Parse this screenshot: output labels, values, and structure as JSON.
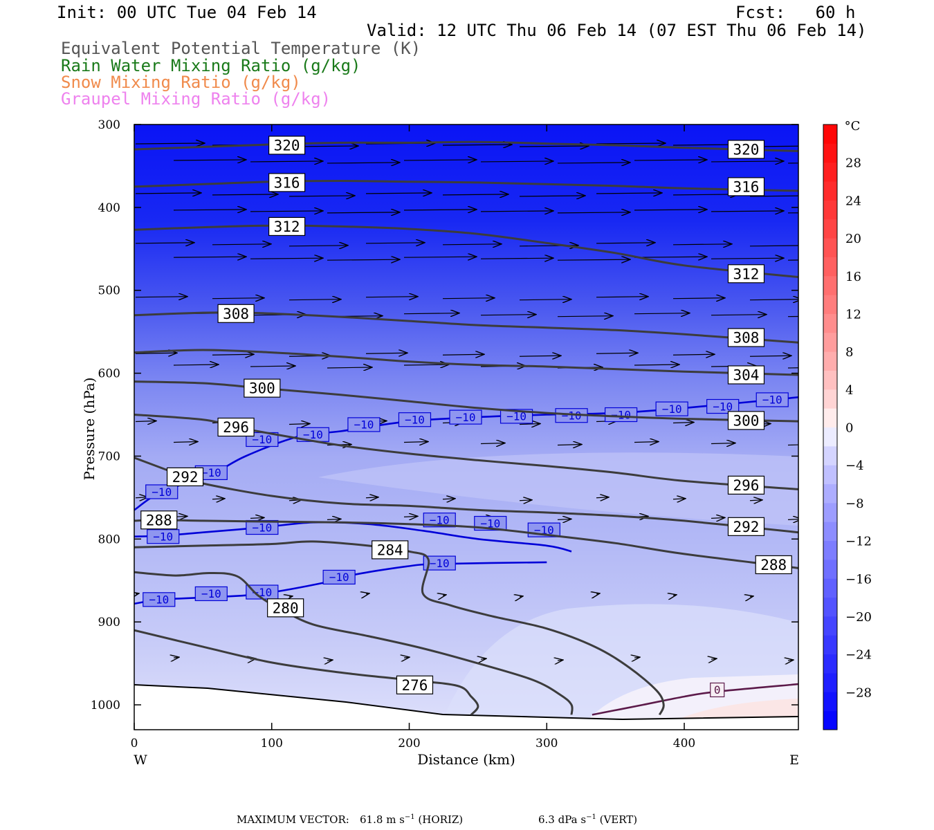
{
  "header": {
    "init": "Init: 00 UTC Tue 04 Feb 14",
    "fcst": "Fcst:   60 h",
    "valid": "Valid: 12 UTC Thu 06 Feb 14 (07 EST Thu 06 Feb 14)",
    "fields": [
      {
        "label": "Equivalent Potential Temperature (K)",
        "color": "#555555"
      },
      {
        "label": "Rain Water Mixing Ratio (g/kg)",
        "color": "#1a7a1a"
      },
      {
        "label": "Snow Mixing Ratio (g/kg)",
        "color": "#f08a4b"
      },
      {
        "label": "Graupel Mixing Ratio (g/kg)",
        "color": "#ee82ee"
      }
    ]
  },
  "chart_data": {
    "type": "cross-section",
    "xlabel": "Distance (km)",
    "ylabel": "Pressure (hPa)",
    "x_ticks": [
      0,
      100,
      200,
      300,
      400
    ],
    "xlim": [
      0,
      483
    ],
    "y_ticks": [
      300,
      400,
      500,
      600,
      700,
      800,
      900,
      1000
    ],
    "ylim": [
      300,
      1030
    ],
    "x_end_labels": {
      "left": "W",
      "right": "E"
    },
    "colorbar": {
      "unit": "°C",
      "tick_values": [
        28,
        24,
        20,
        16,
        12,
        8,
        4,
        0,
        -4,
        -8,
        -12,
        -16,
        -20,
        -24,
        -28
      ],
      "tick_labels": [
        "28",
        "24",
        "20",
        "16",
        "12",
        "8",
        "4",
        "0",
        "−4",
        "−8",
        "−12",
        "−16",
        "−20",
        "−24",
        "−28"
      ],
      "range": [
        -32,
        32
      ],
      "step": 2,
      "cold_color": "#0000ff",
      "warm_color": "#ff0000"
    },
    "theta_e_contours": [
      {
        "value": 320,
        "points": [
          [
            0,
            330
          ],
          [
            50,
            327
          ],
          [
            100,
            324
          ],
          [
            150,
            322
          ],
          [
            200,
            322
          ],
          [
            250,
            321
          ],
          [
            300,
            323
          ],
          [
            350,
            325
          ],
          [
            400,
            328
          ],
          [
            483,
            332
          ]
        ],
        "labels": [
          [
            111,
            325
          ],
          [
            445,
            330
          ]
        ]
      },
      {
        "value": 316,
        "points": [
          [
            0,
            375
          ],
          [
            50,
            372
          ],
          [
            100,
            369
          ],
          [
            150,
            368
          ],
          [
            200,
            369
          ],
          [
            250,
            370
          ],
          [
            300,
            372
          ],
          [
            350,
            374
          ],
          [
            400,
            377
          ],
          [
            483,
            380
          ]
        ],
        "labels": [
          [
            111,
            370
          ],
          [
            445,
            375
          ]
        ]
      },
      {
        "value": 312,
        "points": [
          [
            0,
            427
          ],
          [
            50,
            424
          ],
          [
            100,
            422
          ],
          [
            150,
            423
          ],
          [
            200,
            426
          ],
          [
            250,
            432
          ],
          [
            300,
            443
          ],
          [
            350,
            455
          ],
          [
            400,
            470
          ],
          [
            483,
            484
          ]
        ],
        "labels": [
          [
            111,
            423
          ],
          [
            445,
            480
          ]
        ]
      },
      {
        "value": 308,
        "points": [
          [
            0,
            530
          ],
          [
            50,
            527
          ],
          [
            75,
            527
          ],
          [
            100,
            528
          ],
          [
            150,
            532
          ],
          [
            200,
            537
          ],
          [
            250,
            542
          ],
          [
            300,
            545
          ],
          [
            350,
            548
          ],
          [
            400,
            553
          ],
          [
            483,
            563
          ]
        ],
        "labels": [
          [
            74,
            528
          ],
          [
            445,
            557
          ]
        ]
      },
      {
        "value": 304,
        "points": [
          [
            0,
            575
          ],
          [
            50,
            572
          ],
          [
            100,
            575
          ],
          [
            150,
            580
          ],
          [
            200,
            586
          ],
          [
            250,
            590
          ],
          [
            300,
            592
          ],
          [
            350,
            595
          ],
          [
            400,
            598
          ],
          [
            483,
            602
          ]
        ],
        "labels": [
          [
            445,
            602
          ]
        ]
      },
      {
        "value": 300,
        "points": [
          [
            0,
            610
          ],
          [
            50,
            612
          ],
          [
            93,
            618
          ],
          [
            150,
            626
          ],
          [
            200,
            634
          ],
          [
            250,
            642
          ],
          [
            300,
            648
          ],
          [
            350,
            652
          ],
          [
            400,
            655
          ],
          [
            483,
            658
          ]
        ],
        "labels": [
          [
            93,
            618
          ],
          [
            445,
            657
          ]
        ]
      },
      {
        "value": 296,
        "points": [
          [
            0,
            650
          ],
          [
            50,
            656
          ],
          [
            74,
            665
          ],
          [
            100,
            673
          ],
          [
            150,
            687
          ],
          [
            200,
            697
          ],
          [
            250,
            705
          ],
          [
            300,
            712
          ],
          [
            350,
            720
          ],
          [
            400,
            730
          ],
          [
            483,
            740
          ]
        ],
        "labels": [
          [
            74,
            665
          ],
          [
            445,
            735
          ]
        ]
      },
      {
        "value": 292,
        "points": [
          [
            0,
            702
          ],
          [
            37,
            725
          ],
          [
            50,
            733
          ],
          [
            100,
            748
          ],
          [
            150,
            757
          ],
          [
            200,
            760
          ],
          [
            250,
            765
          ],
          [
            300,
            768
          ],
          [
            350,
            772
          ],
          [
            400,
            778
          ],
          [
            483,
            792
          ]
        ],
        "labels": [
          [
            37,
            725
          ],
          [
            445,
            785
          ]
        ]
      },
      {
        "value": 288,
        "points": [
          [
            0,
            778
          ],
          [
            18,
            777
          ],
          [
            50,
            778
          ],
          [
            100,
            779
          ],
          [
            150,
            780
          ],
          [
            200,
            782
          ],
          [
            250,
            786
          ],
          [
            300,
            795
          ],
          [
            350,
            805
          ],
          [
            400,
            818
          ],
          [
            483,
            835
          ]
        ],
        "labels": [
          [
            18,
            777
          ],
          [
            465,
            831
          ]
        ]
      },
      {
        "value": 284,
        "points": [
          [
            0,
            810
          ],
          [
            50,
            808
          ],
          [
            100,
            806
          ],
          [
            130,
            803
          ],
          [
            170,
            808
          ],
          [
            200,
            815
          ],
          [
            214,
            825
          ],
          [
            210,
            866
          ],
          [
            230,
            880
          ],
          [
            260,
            893
          ],
          [
            300,
            908
          ],
          [
            335,
            930
          ],
          [
            360,
            955
          ],
          [
            380,
            983
          ],
          [
            385,
            1000
          ],
          [
            382,
            1012
          ]
        ],
        "labels": [
          [
            186,
            813
          ]
        ]
      },
      {
        "value": 280,
        "points": [
          [
            0,
            840
          ],
          [
            30,
            844
          ],
          [
            55,
            841
          ],
          [
            75,
            845
          ],
          [
            90,
            868
          ],
          [
            105,
            883
          ],
          [
            130,
            903
          ],
          [
            170,
            917
          ],
          [
            210,
            932
          ],
          [
            250,
            950
          ],
          [
            290,
            970
          ],
          [
            310,
            988
          ],
          [
            318,
            1000
          ],
          [
            318,
            1012
          ]
        ],
        "labels": [
          [
            110,
            883
          ]
        ]
      },
      {
        "value": 276,
        "points": [
          [
            0,
            910
          ],
          [
            50,
            930
          ],
          [
            100,
            949
          ],
          [
            150,
            961
          ],
          [
            200,
            970
          ],
          [
            235,
            977
          ],
          [
            245,
            990
          ],
          [
            250,
            1002
          ],
          [
            245,
            1012
          ]
        ],
        "labels": [
          [
            204,
            976
          ]
        ]
      }
    ],
    "isotherms": [
      {
        "value": -10,
        "color": "#0000d8",
        "points": [
          [
            0,
            765
          ],
          [
            20,
            743
          ],
          [
            55,
            723
          ],
          [
            81,
            700
          ],
          [
            120,
            676
          ],
          [
            150,
            670
          ],
          [
            200,
            658
          ],
          [
            250,
            653
          ],
          [
            300,
            650
          ],
          [
            350,
            648
          ],
          [
            400,
            642
          ],
          [
            483,
            629
          ]
        ],
        "labels": [
          [
            20,
            743
          ],
          [
            56,
            720
          ],
          [
            93,
            680
          ],
          [
            130,
            674
          ],
          [
            167,
            662
          ],
          [
            204,
            656
          ],
          [
            241,
            653
          ],
          [
            278,
            652
          ],
          [
            318,
            651
          ],
          [
            354,
            650
          ],
          [
            391,
            643
          ],
          [
            428,
            640
          ],
          [
            464,
            632
          ]
        ]
      },
      {
        "value": -10,
        "color": "#0000d8",
        "points": [
          [
            0,
            797
          ],
          [
            20,
            796
          ],
          [
            50,
            792
          ],
          [
            93,
            786
          ],
          [
            130,
            780
          ],
          [
            170,
            782
          ],
          [
            210,
            790
          ],
          [
            250,
            800
          ],
          [
            300,
            808
          ],
          [
            318,
            815
          ]
        ],
        "labels": [
          [
            21,
            797
          ],
          [
            93,
            786
          ],
          [
            222,
            777
          ],
          [
            259,
            781
          ],
          [
            298,
            789
          ]
        ]
      },
      {
        "value": -10,
        "color": "#0000d8",
        "points": [
          [
            0,
            878
          ],
          [
            20,
            873
          ],
          [
            58,
            870
          ],
          [
            93,
            866
          ],
          [
            140,
            852
          ],
          [
            160,
            843
          ],
          [
            198,
            833
          ],
          [
            222,
            830
          ],
          [
            300,
            828
          ]
        ],
        "labels": [
          [
            18,
            873
          ],
          [
            56,
            866
          ],
          [
            93,
            864
          ],
          [
            149,
            846
          ],
          [
            222,
            829
          ]
        ]
      },
      {
        "value": 0,
        "color": "#5c1a4a",
        "points": [
          [
            333,
            1012
          ],
          [
            370,
            1000
          ],
          [
            400,
            990
          ],
          [
            424,
            984
          ],
          [
            483,
            975
          ]
        ],
        "labels": [
          [
            424,
            982
          ]
        ]
      }
    ],
    "vectors_unit": {
      "max_horiz": "61.8",
      "max_vert": "6.3"
    }
  },
  "footer": {
    "max_vector_label": "MAXIMUM VECTOR:",
    "horiz_value": "61.8",
    "horiz_unit": "m s",
    "horiz_exp": "−1",
    "horiz_tag": "(HORIZ)",
    "vert_value": "6.3",
    "vert_unit": "dPa s",
    "vert_exp": "−1",
    "vert_tag": "(VERT)"
  }
}
